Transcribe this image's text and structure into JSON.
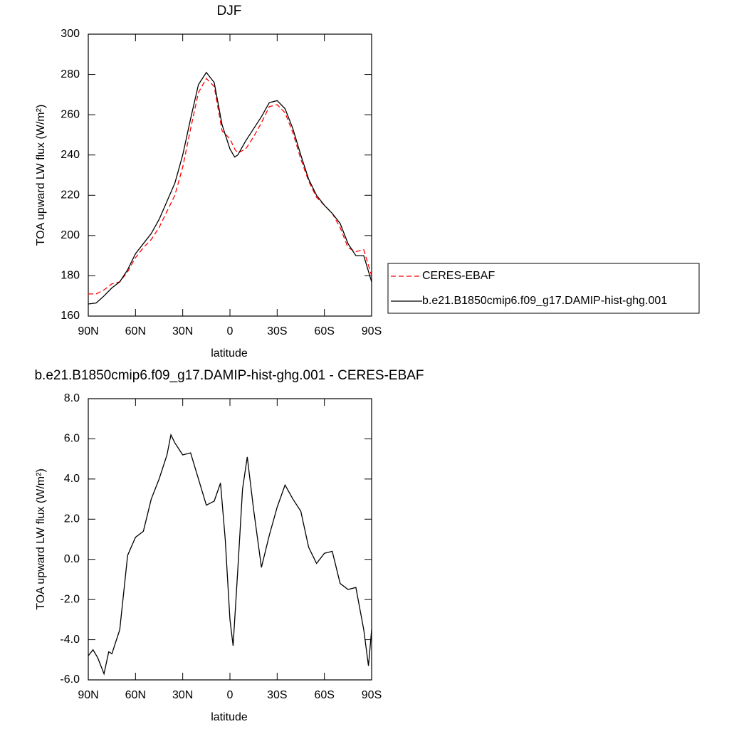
{
  "chart_data": [
    {
      "type": "line",
      "title": "DJF",
      "xlabel": "latitude",
      "ylabel": "TOA upward LW flux (W/m²)",
      "x": [
        90,
        85,
        80,
        75,
        70,
        65,
        60,
        55,
        50,
        45,
        40,
        35,
        30,
        25,
        20,
        15,
        10,
        5,
        0,
        -3,
        -5,
        -10,
        -15,
        -20,
        -25,
        -30,
        -35,
        -40,
        -45,
        -50,
        -55,
        -60,
        -65,
        -70,
        -75,
        -80,
        -85,
        -90
      ],
      "series": [
        {
          "name": "CERES-EBAF",
          "color": "#ff0000",
          "dashed": true,
          "values": [
            171,
            171,
            173,
            176,
            177,
            182,
            189,
            194,
            198,
            204,
            212,
            220,
            234,
            253,
            271,
            278,
            274,
            252,
            248,
            243,
            241,
            243,
            249,
            256,
            264,
            265,
            261,
            251,
            238,
            227,
            219,
            215,
            211,
            204,
            194,
            192,
            193,
            180
          ]
        },
        {
          "name": "b.e21.B1850cmip6.f09_g17.DAMIP-hist-ghg.001",
          "color": "#000000",
          "dashed": false,
          "values": [
            166,
            166.5,
            170,
            174,
            177,
            183,
            191,
            196,
            201,
            208,
            217,
            226,
            240,
            258,
            275,
            281,
            276,
            255,
            243,
            239,
            240,
            247,
            253,
            259,
            266,
            267,
            263,
            253,
            240,
            228,
            220,
            215,
            211,
            206,
            196,
            190,
            190,
            177
          ]
        }
      ],
      "xlim": [
        90,
        -90
      ],
      "xticks": [
        {
          "value": 90,
          "label": "90N"
        },
        {
          "value": 60,
          "label": "60N"
        },
        {
          "value": 30,
          "label": "30N"
        },
        0,
        {
          "value": -30,
          "label": "30S"
        },
        {
          "value": -60,
          "label": "60S"
        },
        {
          "value": -90,
          "label": "90S"
        }
      ],
      "ylim": [
        160,
        300
      ],
      "yticks": [
        160,
        180,
        200,
        220,
        240,
        260,
        280,
        300
      ],
      "legend": "right"
    },
    {
      "type": "line",
      "title": "b.e21.B1850cmip6.f09_g17.DAMIP-hist-ghg.001 - CERES-EBAF",
      "xlabel": "latitude",
      "ylabel": "TOA upward LW flux (W/m²)",
      "x": [
        90,
        87,
        84,
        80,
        77,
        75,
        70,
        65,
        60,
        55,
        50,
        45,
        40,
        37.5,
        35,
        30,
        25,
        20,
        15,
        10,
        6,
        3,
        0,
        -2,
        -5,
        -8,
        -11,
        -15,
        -20,
        -25,
        -30,
        -35,
        -40,
        -45,
        -50,
        -55,
        -60,
        -65,
        -70,
        -75,
        -80,
        -85,
        -88,
        -90
      ],
      "series": [
        {
          "color": "#000000",
          "dashed": false,
          "values": [
            -4.8,
            -4.5,
            -4.9,
            -5.7,
            -4.6,
            -4.7,
            -3.5,
            0.2,
            1.1,
            1.4,
            3.0,
            4.0,
            5.2,
            6.2,
            5.8,
            5.2,
            5.3,
            4.0,
            2.7,
            2.9,
            3.8,
            1.0,
            -3.0,
            -4.3,
            -0.5,
            3.5,
            5.1,
            2.5,
            -0.4,
            1.2,
            2.6,
            3.7,
            3.0,
            2.4,
            0.6,
            -0.2,
            0.3,
            0.4,
            -1.2,
            -1.5,
            -1.4,
            -3.5,
            -5.3,
            -3.5
          ]
        }
      ],
      "xlim": [
        90,
        -90
      ],
      "xticks": [
        {
          "value": 90,
          "label": "90N"
        },
        {
          "value": 60,
          "label": "60N"
        },
        {
          "value": 30,
          "label": "30N"
        },
        0,
        {
          "value": -30,
          "label": "30S"
        },
        {
          "value": -60,
          "label": "60S"
        },
        {
          "value": -90,
          "label": "90S"
        }
      ],
      "ylim": [
        -6,
        8
      ],
      "yticks": [
        {
          "value": -6,
          "label": "-6.0"
        },
        {
          "value": -4,
          "label": "-4.0"
        },
        {
          "value": -2,
          "label": "-2.0"
        },
        {
          "value": 0,
          "label": "0.0"
        },
        {
          "value": 2,
          "label": "2.0"
        },
        {
          "value": 4,
          "label": "4.0"
        },
        {
          "value": 6,
          "label": "6.0"
        },
        {
          "value": 8,
          "label": "8.0"
        }
      ]
    }
  ]
}
